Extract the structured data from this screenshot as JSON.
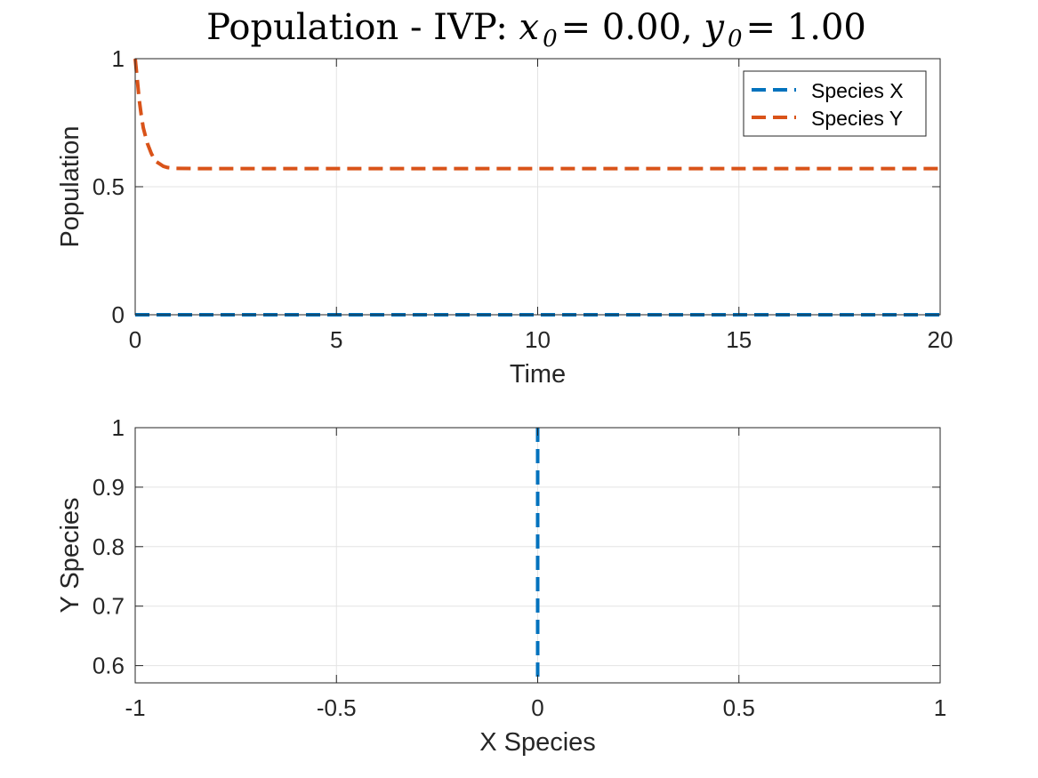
{
  "figure": {
    "title_prefix": "Population - IVP: ",
    "title_x": "x",
    "title_x_sub": "0",
    "title_x_eq": " = 0.00, ",
    "title_y": "y",
    "title_y_sub": "0",
    "title_y_eq": " = 1.00"
  },
  "colors": {
    "species_x": "#0072BD",
    "species_y": "#D95319"
  },
  "chart_data": [
    {
      "type": "line",
      "title": "Population - IVP: x0 = 0.00, y0 = 1.00",
      "xlabel": "Time",
      "ylabel": "Population",
      "xlim": [
        0,
        20
      ],
      "ylim": [
        0,
        1
      ],
      "xticks": [
        0,
        5,
        10,
        15,
        20
      ],
      "xtick_labels": [
        "0",
        "5",
        "10",
        "15",
        "20"
      ],
      "yticks": [
        0,
        0.5,
        1
      ],
      "ytick_labels": [
        "0",
        "0.5",
        "1"
      ],
      "grid": true,
      "legend_position": "top-right",
      "line_style": "dashed",
      "series": [
        {
          "name": "Species X",
          "color": "#0072BD",
          "x": [
            0,
            0.1,
            0.2,
            0.3,
            0.4,
            0.5,
            0.6,
            0.7,
            0.8,
            1.0,
            1.5,
            2,
            5,
            10,
            15,
            20
          ],
          "y": [
            0,
            0,
            0,
            0,
            0,
            0,
            0,
            0,
            0,
            0,
            0,
            0,
            0,
            0,
            0,
            0
          ]
        },
        {
          "name": "Species Y",
          "color": "#D95319",
          "x": [
            0,
            0.05,
            0.1,
            0.15,
            0.2,
            0.3,
            0.4,
            0.5,
            0.6,
            0.7,
            0.8,
            1.0,
            1.5,
            2,
            5,
            10,
            15,
            20
          ],
          "y": [
            1.0,
            0.92,
            0.84,
            0.78,
            0.73,
            0.67,
            0.63,
            0.6,
            0.59,
            0.58,
            0.575,
            0.572,
            0.571,
            0.571,
            0.571,
            0.571,
            0.571,
            0.571
          ]
        }
      ]
    },
    {
      "type": "line",
      "title": "",
      "xlabel": "X Species",
      "ylabel": "Y Species",
      "xlim": [
        -1,
        1
      ],
      "ylim": [
        0.571,
        1
      ],
      "xticks": [
        -1,
        -0.5,
        0,
        0.5,
        1
      ],
      "xtick_labels": [
        "-1",
        "-0.5",
        "0",
        "0.5",
        "1"
      ],
      "yticks": [
        0.6,
        0.7,
        0.8,
        0.9,
        1
      ],
      "ytick_labels": [
        "0.6",
        "0.7",
        "0.8",
        "0.9",
        "1"
      ],
      "grid": true,
      "line_style": "dashed",
      "series": [
        {
          "color": "#0072BD",
          "x": [
            0,
            0,
            0,
            0,
            0,
            0,
            0
          ],
          "y": [
            1.0,
            0.9,
            0.8,
            0.7,
            0.6,
            0.58,
            0.571
          ]
        }
      ]
    }
  ]
}
